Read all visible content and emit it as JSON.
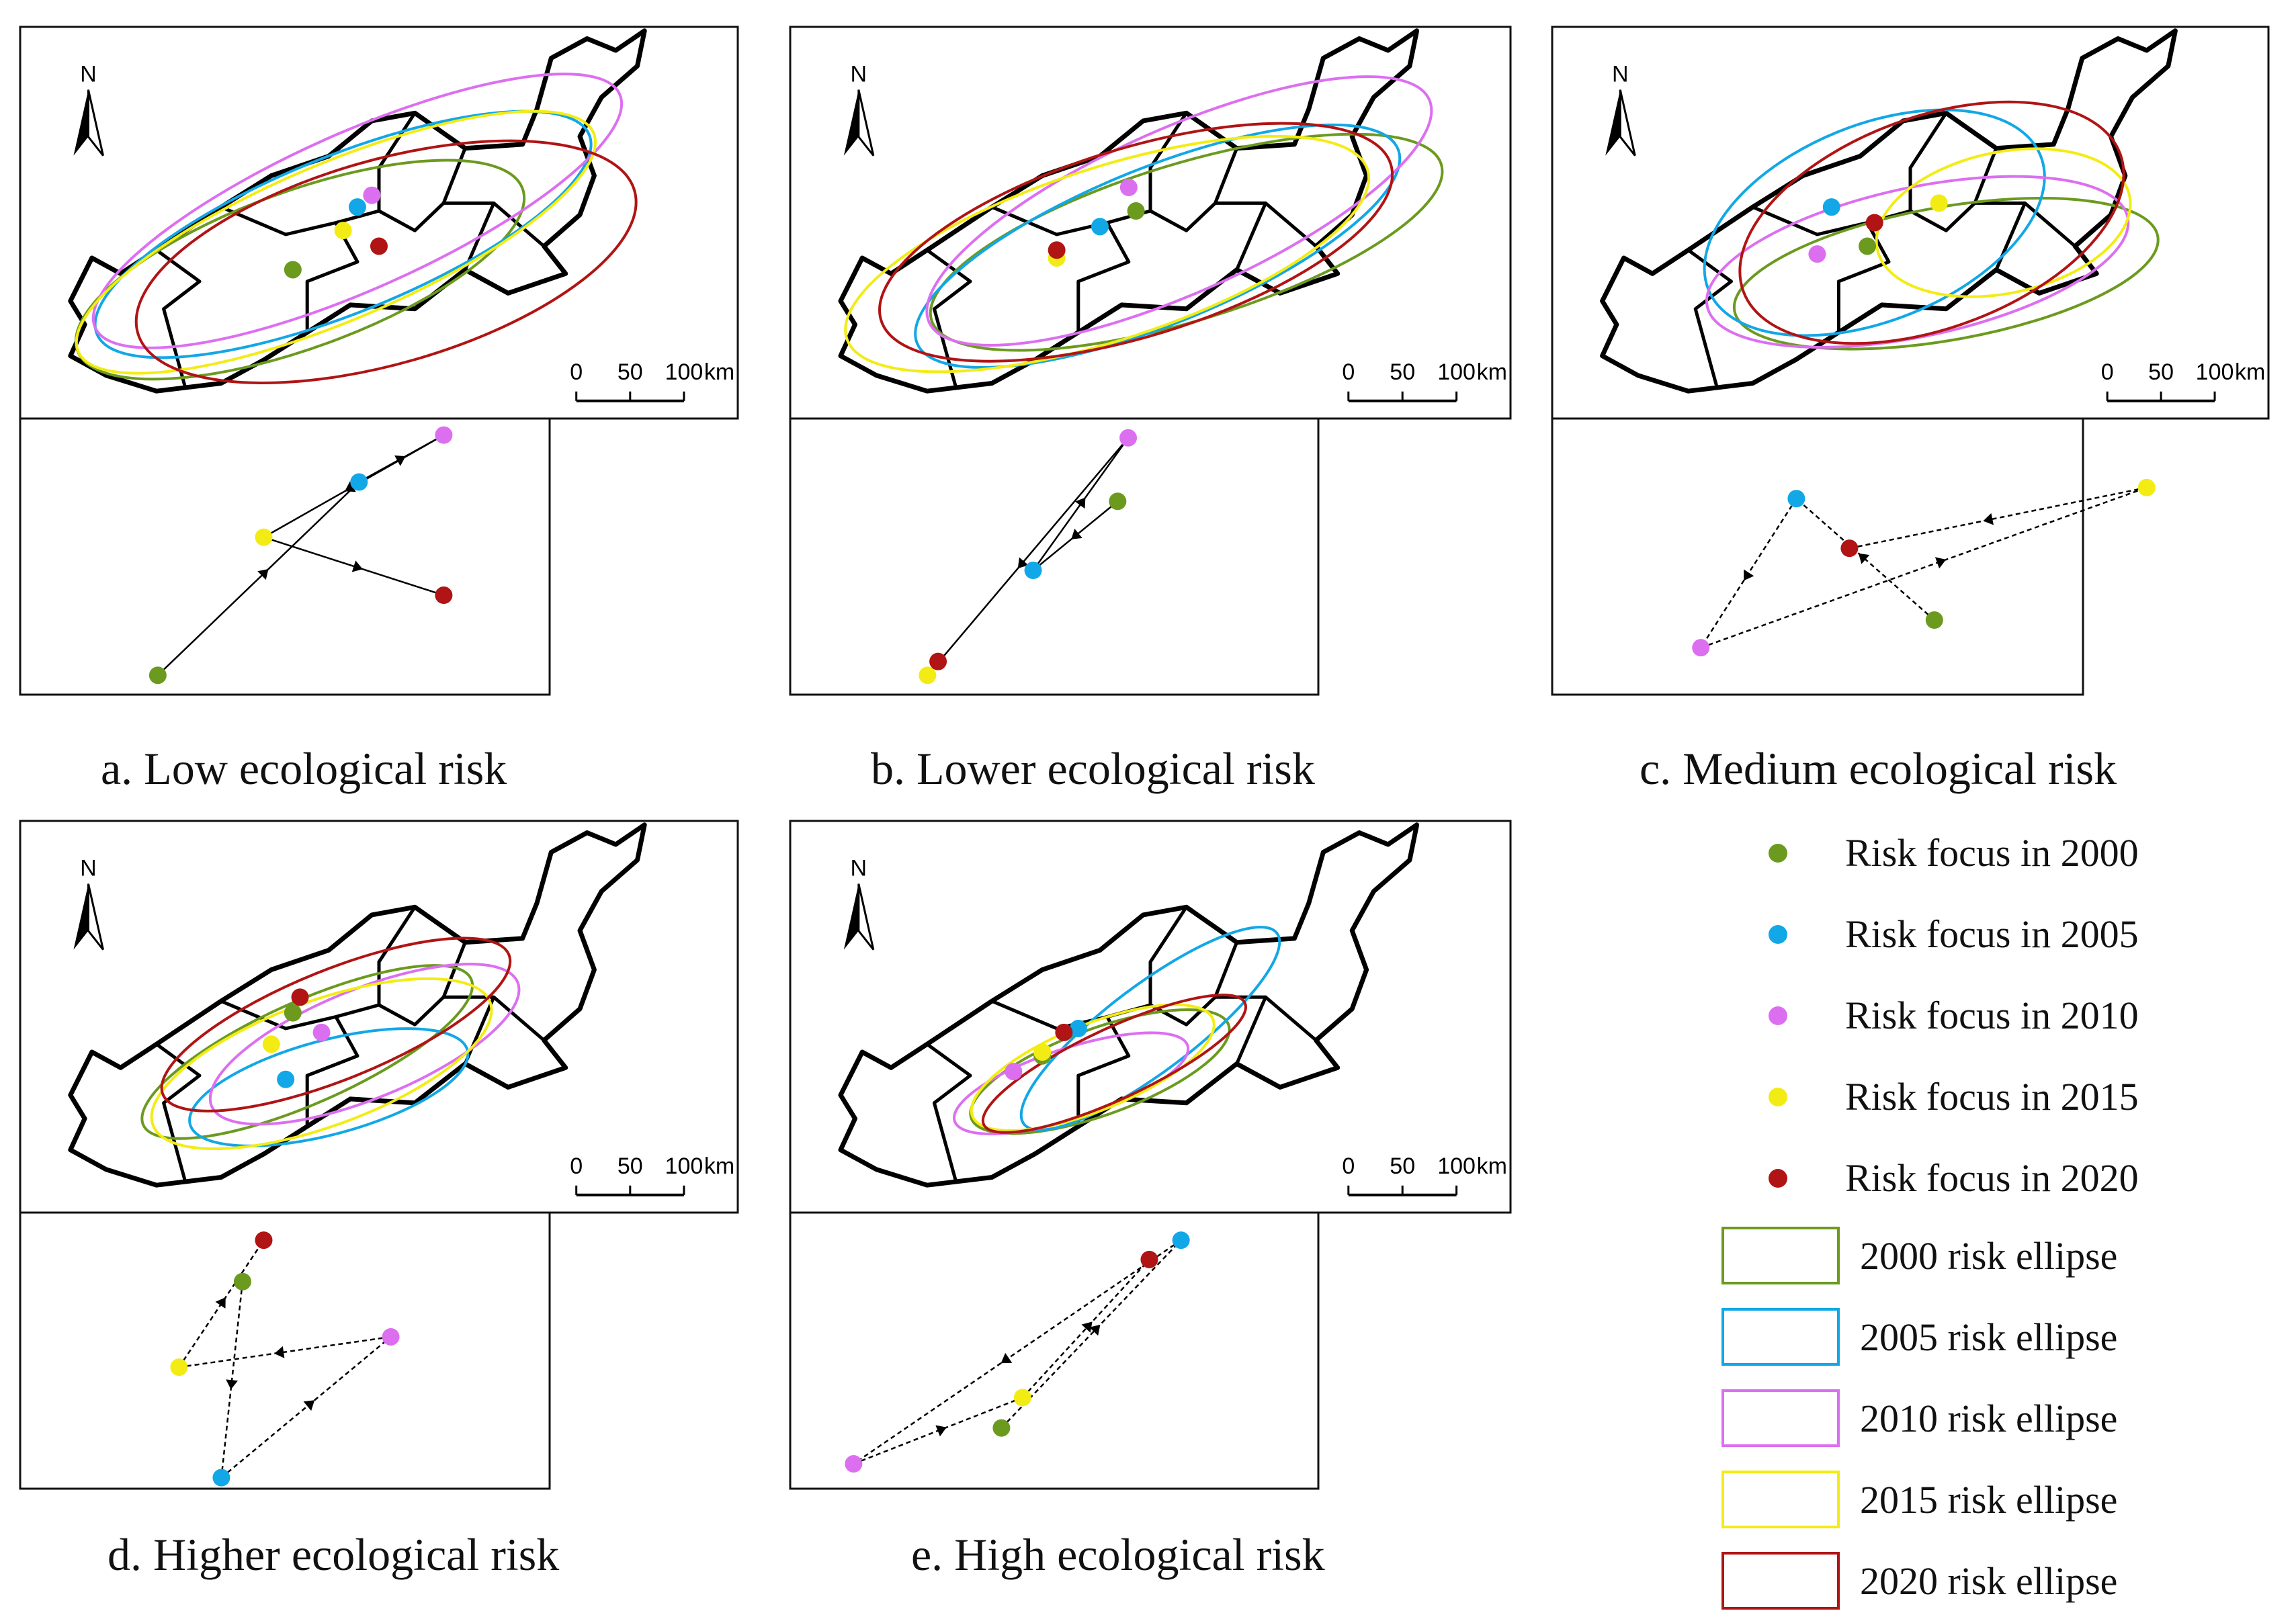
{
  "colors": {
    "2000": "#6b9a1f",
    "2005": "#12a7e6",
    "2010": "#dc6ff0",
    "2015": "#f3ec14",
    "2020": "#b01414"
  },
  "scalebar": {
    "ticks": [
      "0",
      "50",
      "100"
    ],
    "unit": "km"
  },
  "north_label": "N",
  "panels": [
    {
      "id": "a",
      "caption": "a. Low ecological risk"
    },
    {
      "id": "b",
      "caption": "b. Lower ecological risk"
    },
    {
      "id": "c",
      "caption": "c. Medium ecological risk"
    },
    {
      "id": "d",
      "caption": "d. Higher ecological risk"
    },
    {
      "id": "e",
      "caption": "e. High ecological risk"
    }
  ],
  "legend": {
    "points": [
      {
        "year": "2000",
        "label": "Risk focus in 2000"
      },
      {
        "year": "2005",
        "label": "Risk focus in 2005"
      },
      {
        "year": "2010",
        "label": "Risk focus in 2010"
      },
      {
        "year": "2015",
        "label": "Risk focus in 2015"
      },
      {
        "year": "2020",
        "label": "Risk focus in 2020"
      }
    ],
    "ellipses": [
      {
        "year": "2000",
        "label": "2000 risk ellipse"
      },
      {
        "year": "2005",
        "label": "2005 risk ellipse"
      },
      {
        "year": "2010",
        "label": "2010 risk ellipse"
      },
      {
        "year": "2015",
        "label": "2015 risk ellipse"
      },
      {
        "year": "2020",
        "label": "2020 risk ellipse"
      }
    ]
  }
}
